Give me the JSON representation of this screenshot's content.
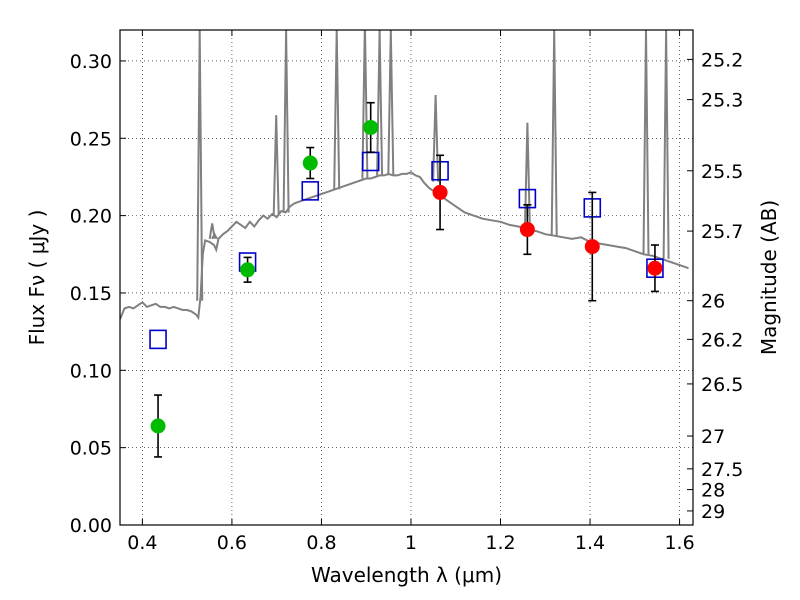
{
  "chart_data": {
    "type": "scatter",
    "xlabel": "Wavelength  λ (μm)",
    "ylabel": "Flux  Fν  ( μJy )",
    "y2label": "Magnitude (AB)",
    "xlim": [
      0.35,
      1.63
    ],
    "ylim": [
      0.0,
      0.32
    ],
    "grid": true,
    "x_ticks": [
      {
        "value": 0.4,
        "label": "0.4"
      },
      {
        "value": 0.6,
        "label": "0.6"
      },
      {
        "value": 0.8,
        "label": "0.8"
      },
      {
        "value": 1.0,
        "label": "1"
      },
      {
        "value": 1.2,
        "label": "1.2"
      },
      {
        "value": 1.4,
        "label": "1.4"
      },
      {
        "value": 1.6,
        "label": "1.6"
      }
    ],
    "y_ticks": [
      {
        "value": 0.0,
        "label": "0.00"
      },
      {
        "value": 0.05,
        "label": "0.05"
      },
      {
        "value": 0.1,
        "label": "0.10"
      },
      {
        "value": 0.15,
        "label": "0.15"
      },
      {
        "value": 0.2,
        "label": "0.20"
      },
      {
        "value": 0.25,
        "label": "0.25"
      },
      {
        "value": 0.3,
        "label": "0.30"
      }
    ],
    "magnitude_ticks": [
      {
        "flux": 0.301,
        "label": "25.2"
      },
      {
        "flux": 0.275,
        "label": "25.3"
      },
      {
        "flux": 0.229,
        "label": "25.5"
      },
      {
        "flux": 0.19,
        "label": "25.7"
      },
      {
        "flux": 0.145,
        "label": "26"
      },
      {
        "flux": 0.12,
        "label": "26.2"
      },
      {
        "flux": 0.0912,
        "label": "26.5"
      },
      {
        "flux": 0.0575,
        "label": "27"
      },
      {
        "flux": 0.0363,
        "label": "27.5"
      },
      {
        "flux": 0.0229,
        "label": "28"
      },
      {
        "flux": 0.0091,
        "label": "29"
      }
    ],
    "series": [
      {
        "kind": "model-spectrum",
        "color": "#808080",
        "x": [
          0.35,
          0.36,
          0.37,
          0.38,
          0.39,
          0.4,
          0.41,
          0.42,
          0.43,
          0.44,
          0.45,
          0.46,
          0.47,
          0.48,
          0.49,
          0.5,
          0.51,
          0.52,
          0.525,
          0.53,
          0.535,
          0.54,
          0.55,
          0.56,
          0.565,
          0.57,
          0.58,
          0.59,
          0.6,
          0.61,
          0.62,
          0.63,
          0.64,
          0.65,
          0.66,
          0.67,
          0.68,
          0.69,
          0.7,
          0.71,
          0.72,
          0.73,
          0.74,
          0.75,
          0.76,
          0.77,
          0.78,
          0.79,
          0.8,
          0.81,
          0.82,
          0.83,
          0.84,
          0.85,
          0.86,
          0.87,
          0.88,
          0.89,
          0.9,
          0.91,
          0.92,
          0.93,
          0.94,
          0.95,
          0.96,
          0.97,
          0.98,
          0.99,
          1.0,
          1.01,
          1.02,
          1.03,
          1.04,
          1.05,
          1.06,
          1.07,
          1.08,
          1.09,
          1.1,
          1.12,
          1.14,
          1.16,
          1.18,
          1.2,
          1.22,
          1.24,
          1.25,
          1.26,
          1.28,
          1.3,
          1.32,
          1.34,
          1.36,
          1.38,
          1.4,
          1.42,
          1.44,
          1.46,
          1.48,
          1.5,
          1.52,
          1.54,
          1.56,
          1.58,
          1.6,
          1.62
        ],
        "y": [
          0.133,
          0.14,
          0.141,
          0.14,
          0.142,
          0.144,
          0.141,
          0.142,
          0.143,
          0.141,
          0.141,
          0.14,
          0.141,
          0.14,
          0.139,
          0.139,
          0.138,
          0.136,
          0.134,
          0.148,
          0.175,
          0.184,
          0.183,
          0.181,
          0.178,
          0.185,
          0.188,
          0.19,
          0.193,
          0.196,
          0.194,
          0.192,
          0.196,
          0.193,
          0.197,
          0.2,
          0.198,
          0.201,
          0.199,
          0.203,
          0.202,
          0.206,
          0.208,
          0.209,
          0.21,
          0.211,
          0.212,
          0.213,
          0.214,
          0.215,
          0.216,
          0.217,
          0.218,
          0.219,
          0.22,
          0.221,
          0.222,
          0.223,
          0.224,
          0.224,
          0.225,
          0.226,
          0.226,
          0.227,
          0.226,
          0.226,
          0.227,
          0.227,
          0.228,
          0.226,
          0.225,
          0.221,
          0.218,
          0.216,
          0.214,
          0.212,
          0.21,
          0.208,
          0.206,
          0.202,
          0.2,
          0.198,
          0.197,
          0.196,
          0.194,
          0.193,
          0.192,
          0.191,
          0.19,
          0.188,
          0.187,
          0.186,
          0.185,
          0.186,
          0.183,
          0.182,
          0.181,
          0.18,
          0.179,
          0.177,
          0.175,
          0.174,
          0.172,
          0.17,
          0.168,
          0.166
        ]
      },
      {
        "kind": "model-emission-lines",
        "color": "#808080",
        "lines": [
          {
            "x": 0.528,
            "base": 0.145,
            "peak": 0.32
          },
          {
            "x": 0.556,
            "base": 0.185,
            "peak": 0.195
          },
          {
            "x": 0.561,
            "base": 0.185,
            "peak": 0.188
          },
          {
            "x": 0.699,
            "base": 0.2,
            "peak": 0.265
          },
          {
            "x": 0.721,
            "base": 0.202,
            "peak": 0.32
          },
          {
            "x": 0.834,
            "base": 0.217,
            "peak": 0.32
          },
          {
            "x": 0.897,
            "base": 0.224,
            "peak": 0.325
          },
          {
            "x": 0.93,
            "base": 0.226,
            "peak": 0.32
          },
          {
            "x": 0.955,
            "base": 0.226,
            "peak": 0.32
          },
          {
            "x": 1.055,
            "base": 0.222,
            "peak": 0.278
          },
          {
            "x": 1.26,
            "base": 0.191,
            "peak": 0.26
          },
          {
            "x": 1.32,
            "base": 0.187,
            "peak": 0.32
          },
          {
            "x": 1.525,
            "base": 0.175,
            "peak": 0.32
          },
          {
            "x": 1.57,
            "base": 0.172,
            "peak": 0.32
          }
        ]
      },
      {
        "kind": "photometry-green",
        "color": "#00bb00",
        "x": [
          0.435,
          0.635,
          0.775,
          0.91
        ],
        "y": [
          0.064,
          0.165,
          0.234,
          0.257
        ],
        "err": [
          0.02,
          0.008,
          0.01,
          0.016
        ]
      },
      {
        "kind": "photometry-red",
        "color": "#ff0000",
        "x": [
          1.065,
          1.26,
          1.405,
          1.545
        ],
        "y": [
          0.215,
          0.191,
          0.18,
          0.166
        ],
        "err": [
          0.024,
          0.016,
          0.035,
          0.015
        ]
      },
      {
        "kind": "model-bandpass-squares",
        "color": "#0000cc",
        "x": [
          0.435,
          0.635,
          0.775,
          0.91,
          1.065,
          1.26,
          1.405,
          1.545
        ],
        "y": [
          0.12,
          0.17,
          0.216,
          0.235,
          0.229,
          0.211,
          0.205,
          0.166
        ]
      }
    ]
  }
}
